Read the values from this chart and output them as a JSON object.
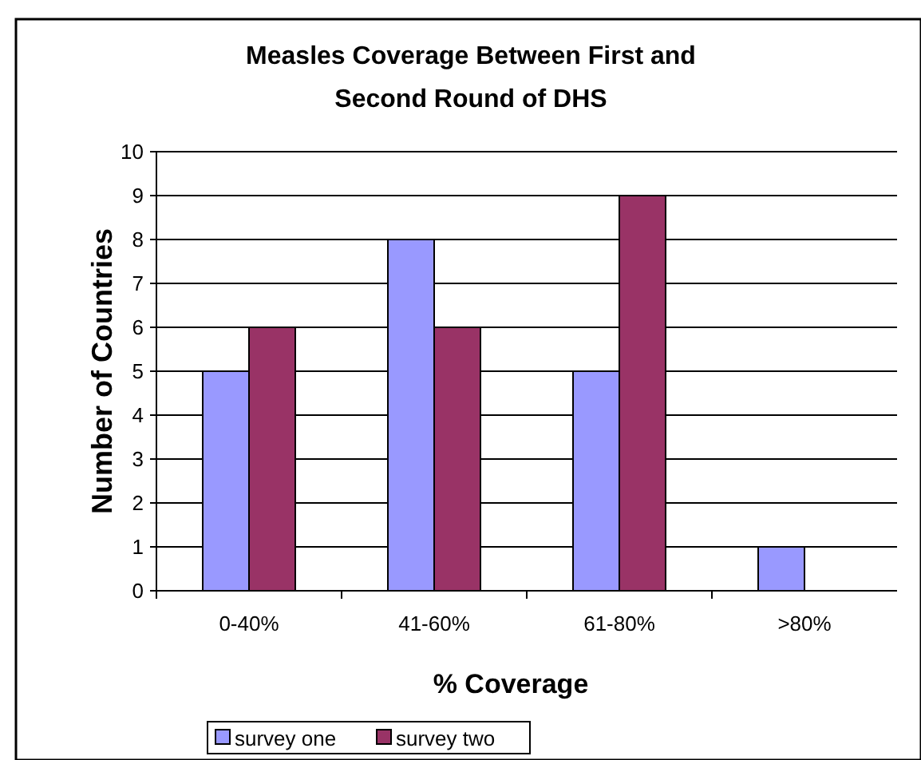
{
  "chart_data": {
    "type": "bar",
    "title": "Measles Coverage Between First and Second Round of DHS",
    "xlabel": "% Coverage",
    "ylabel": "Number of Countries",
    "categories": [
      "0-40%",
      "41-60%",
      "61-80%",
      ">80%"
    ],
    "series": [
      {
        "name": "survey one",
        "color": "#9999ff",
        "values": [
          5,
          8,
          5,
          1
        ]
      },
      {
        "name": "survey two",
        "color": "#993366",
        "values": [
          6,
          6,
          9,
          0
        ]
      }
    ],
    "ylim": [
      0,
      10
    ],
    "yticks": [
      0,
      1,
      2,
      3,
      4,
      5,
      6,
      7,
      8,
      9,
      10
    ],
    "grid": "y",
    "legend": "bottom"
  }
}
